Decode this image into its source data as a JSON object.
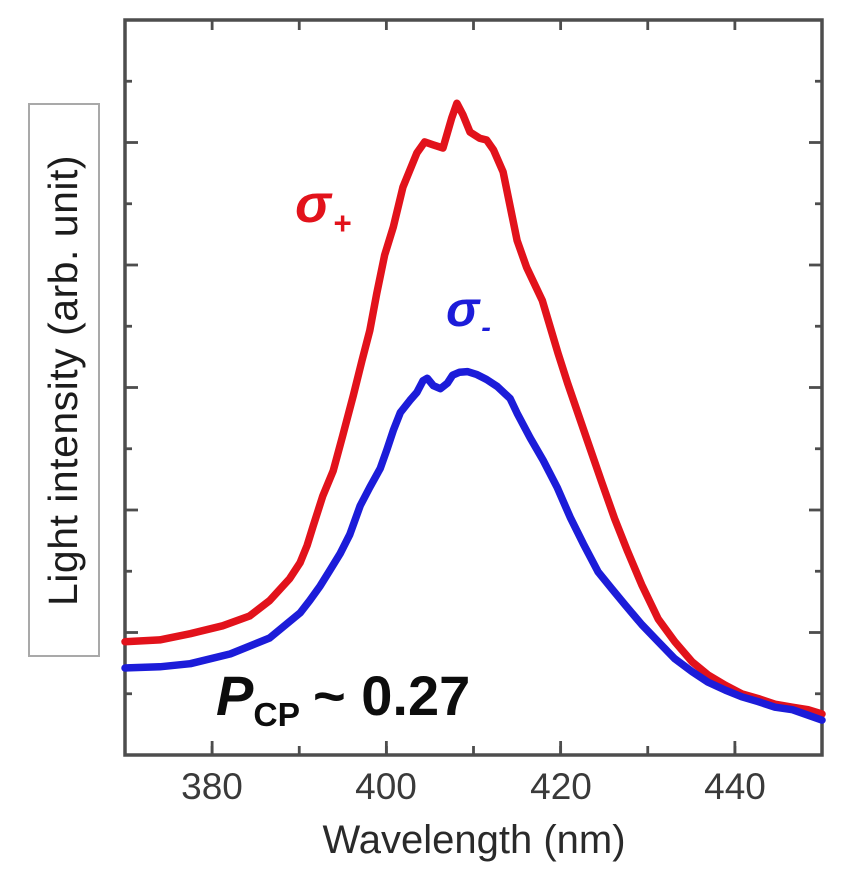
{
  "chart_data": {
    "type": "line",
    "title": "",
    "xlabel": "Wavelength (nm)",
    "ylabel": "Light intensity (arb. unit)",
    "xlim": [
      370,
      450
    ],
    "ylim": [
      0,
      1.2
    ],
    "grid": false,
    "x_major_ticks": [
      380,
      400,
      420,
      440
    ],
    "x_tick_labels": [
      "380",
      "400",
      "420",
      "440"
    ],
    "x_minor_ticks": [
      380,
      390,
      400,
      410,
      420,
      430,
      440
    ],
    "y_ticks": [
      0.1,
      0.2,
      0.3,
      0.4,
      0.5,
      0.6,
      0.7,
      0.8,
      0.9,
      1.0,
      1.1
    ],
    "annotation": {
      "full_text": "P_CP ~ 0.27",
      "prefix": "P",
      "subscript": "CP",
      "suffix": "~ 0.27"
    },
    "frame_color": "#4d4d4d",
    "series": [
      {
        "name": "sigma-plus",
        "display_symbol": "σ",
        "display_subscript": "+",
        "color": "#e2121b",
        "points": [
          [
            370.0,
            0.185
          ],
          [
            374.0,
            0.188
          ],
          [
            377.5,
            0.198
          ],
          [
            381.2,
            0.211
          ],
          [
            384.3,
            0.227
          ],
          [
            386.6,
            0.252
          ],
          [
            388.9,
            0.288
          ],
          [
            390.1,
            0.314
          ],
          [
            390.9,
            0.342
          ],
          [
            391.6,
            0.374
          ],
          [
            392.7,
            0.423
          ],
          [
            393.9,
            0.464
          ],
          [
            395.0,
            0.522
          ],
          [
            396.2,
            0.587
          ],
          [
            397.2,
            0.644
          ],
          [
            398.1,
            0.693
          ],
          [
            398.9,
            0.754
          ],
          [
            399.8,
            0.816
          ],
          [
            400.8,
            0.862
          ],
          [
            401.9,
            0.927
          ],
          [
            403.5,
            0.983
          ],
          [
            404.4,
            1.001
          ],
          [
            405.4,
            0.996
          ],
          [
            406.5,
            0.991
          ],
          [
            407.5,
            1.04
          ],
          [
            408.1,
            1.064
          ],
          [
            408.8,
            1.045
          ],
          [
            409.6,
            1.017
          ],
          [
            410.7,
            1.007
          ],
          [
            411.5,
            1.004
          ],
          [
            412.3,
            0.988
          ],
          [
            413.4,
            0.952
          ],
          [
            415.0,
            0.84
          ],
          [
            416.1,
            0.796
          ],
          [
            417.9,
            0.742
          ],
          [
            419.7,
            0.656
          ],
          [
            420.8,
            0.607
          ],
          [
            422.4,
            0.541
          ],
          [
            423.1,
            0.512
          ],
          [
            424.7,
            0.446
          ],
          [
            426.2,
            0.386
          ],
          [
            427.7,
            0.332
          ],
          [
            429.3,
            0.278
          ],
          [
            431.2,
            0.222
          ],
          [
            433.1,
            0.185
          ],
          [
            435.1,
            0.152
          ],
          [
            436.9,
            0.131
          ],
          [
            438.9,
            0.114
          ],
          [
            440.8,
            0.1
          ],
          [
            442.7,
            0.092
          ],
          [
            444.6,
            0.083
          ],
          [
            446.6,
            0.078
          ],
          [
            448.4,
            0.074
          ],
          [
            450.0,
            0.067
          ]
        ]
      },
      {
        "name": "sigma-minus",
        "display_symbol": "σ",
        "display_subscript": "-",
        "color": "#1c1cd9",
        "points": [
          [
            370.0,
            0.142
          ],
          [
            374.0,
            0.144
          ],
          [
            377.5,
            0.149
          ],
          [
            382.1,
            0.165
          ],
          [
            386.6,
            0.191
          ],
          [
            390.1,
            0.232
          ],
          [
            391.2,
            0.252
          ],
          [
            392.4,
            0.276
          ],
          [
            393.5,
            0.301
          ],
          [
            394.7,
            0.329
          ],
          [
            395.8,
            0.36
          ],
          [
            397.0,
            0.407
          ],
          [
            398.1,
            0.437
          ],
          [
            399.3,
            0.468
          ],
          [
            400.1,
            0.5
          ],
          [
            400.8,
            0.53
          ],
          [
            401.6,
            0.559
          ],
          [
            402.7,
            0.579
          ],
          [
            403.5,
            0.592
          ],
          [
            404.2,
            0.611
          ],
          [
            404.7,
            0.615
          ],
          [
            405.4,
            0.603
          ],
          [
            406.2,
            0.598
          ],
          [
            407.0,
            0.607
          ],
          [
            407.6,
            0.62
          ],
          [
            408.4,
            0.625
          ],
          [
            409.3,
            0.626
          ],
          [
            410.4,
            0.621
          ],
          [
            411.5,
            0.613
          ],
          [
            412.7,
            0.602
          ],
          [
            414.2,
            0.582
          ],
          [
            415.0,
            0.558
          ],
          [
            416.5,
            0.518
          ],
          [
            418.0,
            0.481
          ],
          [
            419.6,
            0.437
          ],
          [
            421.1,
            0.388
          ],
          [
            422.6,
            0.345
          ],
          [
            424.3,
            0.299
          ],
          [
            425.9,
            0.271
          ],
          [
            427.4,
            0.245
          ],
          [
            429.3,
            0.213
          ],
          [
            431.2,
            0.185
          ],
          [
            433.1,
            0.157
          ],
          [
            435.1,
            0.136
          ],
          [
            436.9,
            0.119
          ],
          [
            438.9,
            0.106
          ],
          [
            440.8,
            0.095
          ],
          [
            442.7,
            0.087
          ],
          [
            444.6,
            0.078
          ],
          [
            446.6,
            0.074
          ],
          [
            448.4,
            0.065
          ],
          [
            450.0,
            0.057
          ]
        ]
      }
    ]
  }
}
